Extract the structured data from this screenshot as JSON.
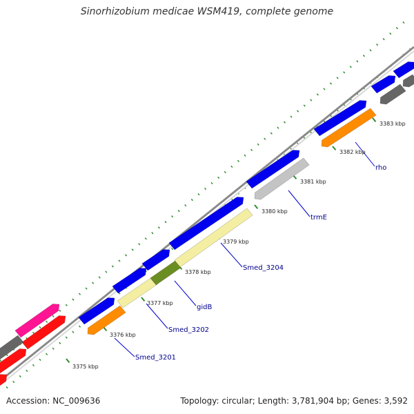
{
  "title": "Sinorhizobium medicae WSM419, complete genome",
  "footer": {
    "accession": "Accession: NC_009636",
    "summary": "Topology: circular; Length: 3,781,904 bp; Genes: 3,592"
  },
  "colors": {
    "backbone": "#8a8a8a",
    "tick": "#2e8b2e",
    "label_line": "#0000cc",
    "forward_gene": "#0000ee",
    "unknown_gene": "#c4c4c4",
    "dark_gene": "#666666",
    "orange_gene": "#ff8c00",
    "yellow_gene": "#f3eea2",
    "olive_gene": "#6b8e23",
    "red_gene": "#ff1010",
    "magenta_gene": "#ff1493"
  },
  "scale_ticks": [
    "3375 kbp",
    "3376 kbp",
    "3377 kbp",
    "3378 kbp",
    "3379 kbp",
    "3380 kbp",
    "3381 kbp",
    "3382 kbp",
    "3383 kbp"
  ],
  "gene_labels": [
    "Smed_3201",
    "Smed_3202",
    "gidB",
    "Smed_3204",
    "trmE",
    "rho"
  ]
}
